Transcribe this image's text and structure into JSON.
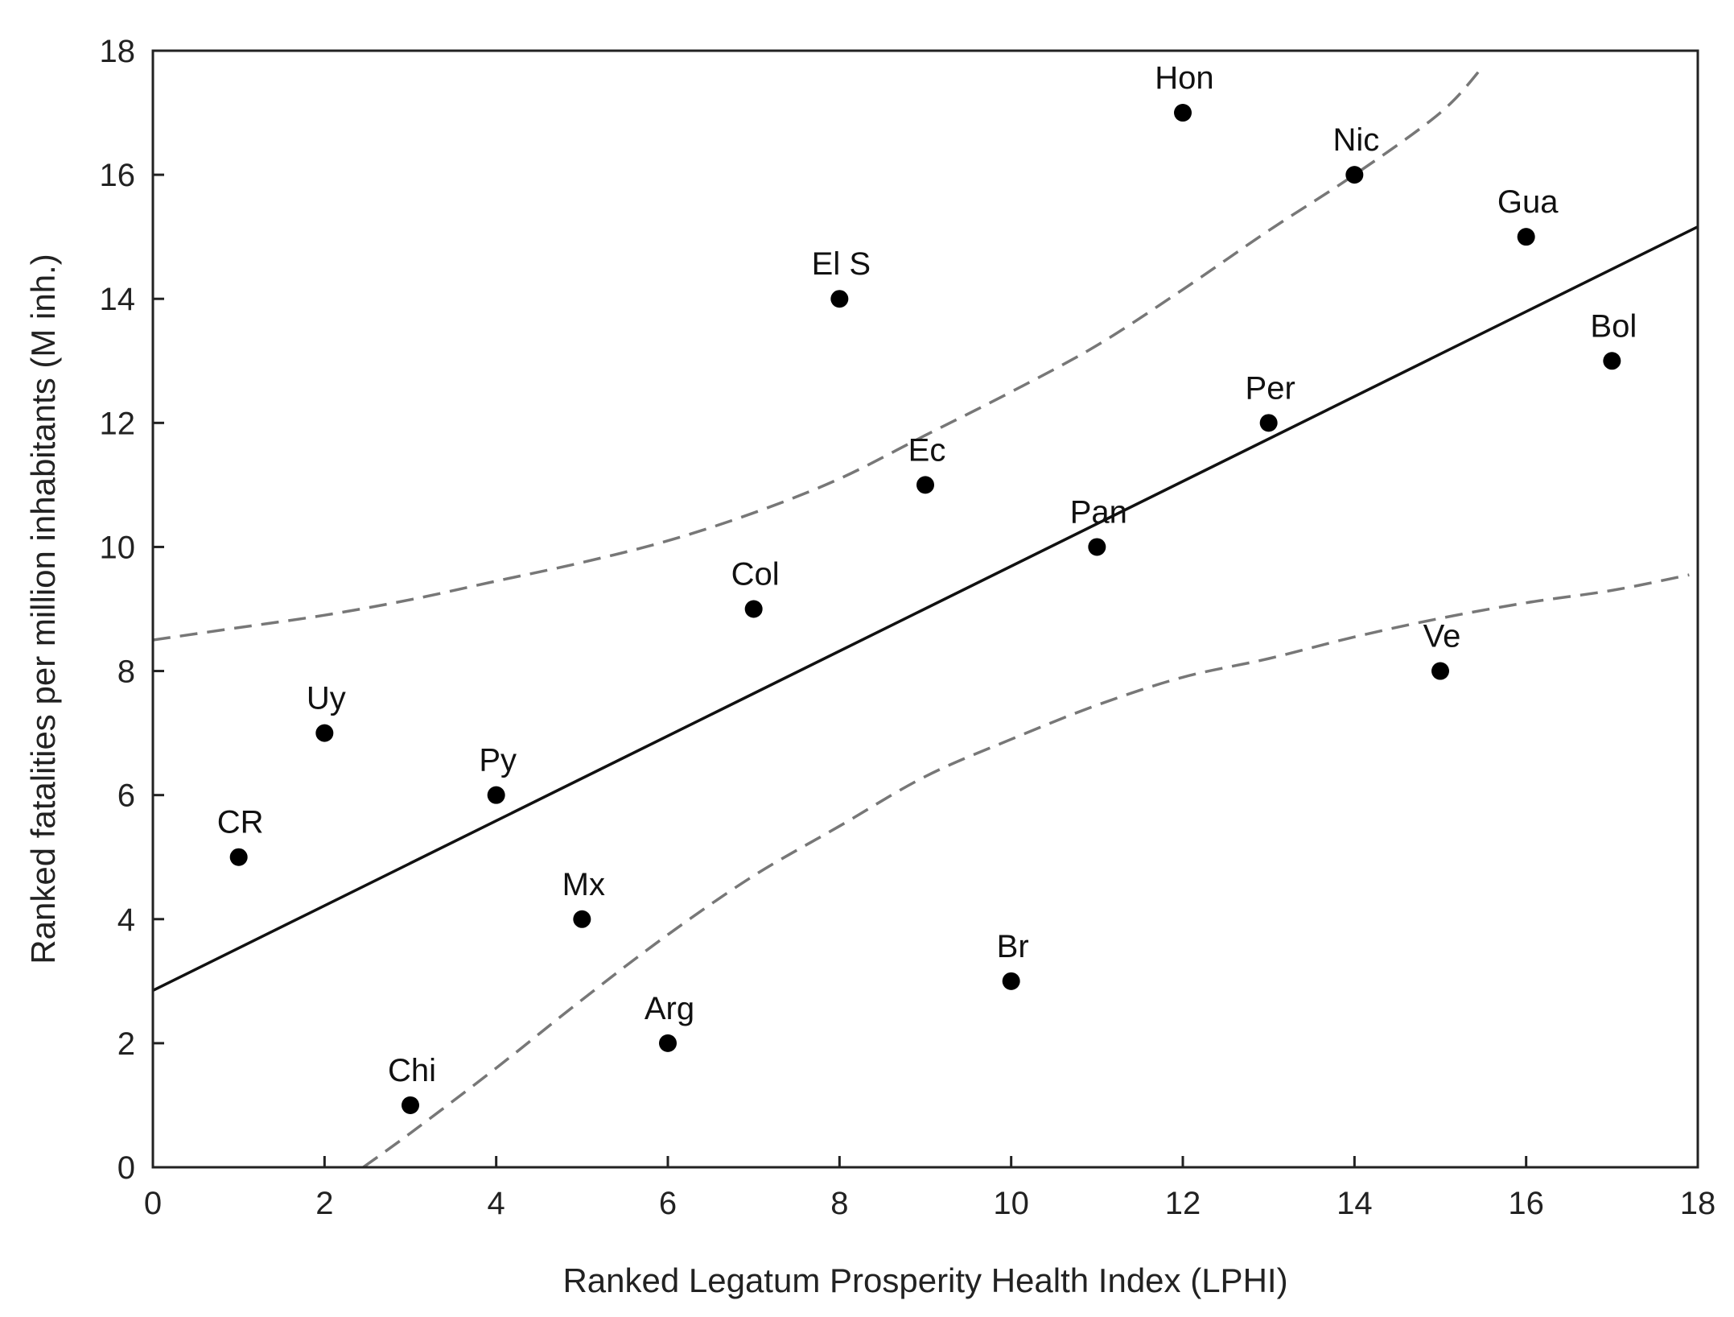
{
  "chart_data": {
    "type": "scatter",
    "title": "",
    "xlabel": "Ranked Legatum Prosperity Health Index (LPHI)",
    "ylabel": "Ranked fatalities per million inhabitants (M inh.)",
    "xlim": [
      0,
      18
    ],
    "ylim": [
      0,
      18
    ],
    "xticks": [
      0,
      2,
      4,
      6,
      8,
      10,
      12,
      14,
      16,
      18
    ],
    "yticks": [
      0,
      2,
      4,
      6,
      8,
      10,
      12,
      14,
      16,
      18
    ],
    "grid": false,
    "points": [
      {
        "label": "CR",
        "x": 1,
        "y": 5
      },
      {
        "label": "Uy",
        "x": 2,
        "y": 7
      },
      {
        "label": "Chi",
        "x": 3,
        "y": 1
      },
      {
        "label": "Py",
        "x": 4,
        "y": 6
      },
      {
        "label": "Mx",
        "x": 5,
        "y": 4
      },
      {
        "label": "Arg",
        "x": 6,
        "y": 2
      },
      {
        "label": "Col",
        "x": 7,
        "y": 9
      },
      {
        "label": "El S",
        "x": 8,
        "y": 14
      },
      {
        "label": "Ec",
        "x": 9,
        "y": 11
      },
      {
        "label": "Br",
        "x": 10,
        "y": 3
      },
      {
        "label": "Pan",
        "x": 11,
        "y": 10
      },
      {
        "label": "Hon",
        "x": 12,
        "y": 17
      },
      {
        "label": "Per",
        "x": 13,
        "y": 12
      },
      {
        "label": "Nic",
        "x": 14,
        "y": 16
      },
      {
        "label": "Ve",
        "x": 15,
        "y": 8
      },
      {
        "label": "Gua",
        "x": 16,
        "y": 15
      },
      {
        "label": "Bol",
        "x": 17,
        "y": 13
      }
    ],
    "regression_line": {
      "intercept": 2.85,
      "slope": 0.684,
      "style": "solid",
      "color": "#111111"
    },
    "confidence_upper": {
      "style": "dashed",
      "color": "#777777",
      "x": [
        0,
        1,
        2,
        3,
        4,
        5,
        6,
        7,
        8,
        9,
        10,
        11,
        12,
        13,
        14,
        15,
        15.5
      ],
      "y": [
        8.5,
        8.7,
        8.9,
        9.15,
        9.45,
        9.75,
        10.1,
        10.55,
        11.1,
        11.8,
        12.5,
        13.25,
        14.15,
        15.1,
        16.0,
        17.0,
        17.75
      ]
    },
    "confidence_lower": {
      "style": "dashed",
      "color": "#777777",
      "x": [
        2.45,
        3,
        4,
        5,
        6,
        7,
        8,
        9,
        10,
        11,
        12,
        13,
        14,
        15,
        16,
        17,
        17.9
      ],
      "y": [
        0.0,
        0.55,
        1.6,
        2.7,
        3.75,
        4.7,
        5.5,
        6.3,
        6.9,
        7.45,
        7.9,
        8.2,
        8.55,
        8.85,
        9.1,
        9.3,
        9.55
      ]
    }
  }
}
